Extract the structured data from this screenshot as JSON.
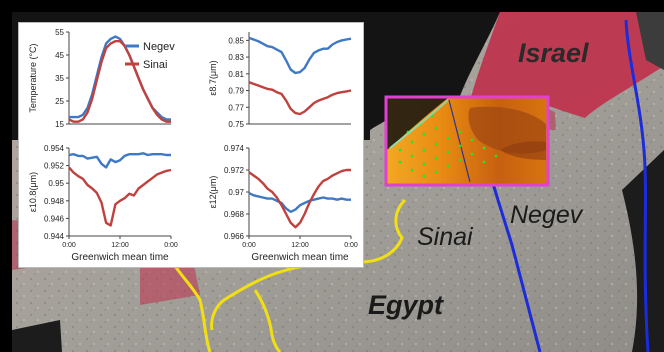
{
  "map": {
    "labels": {
      "israel": "Israel",
      "negev": "Negev",
      "sinai": "Sinai",
      "egypt": "Egypt"
    },
    "colors": {
      "border_blue": "#1c2bdc",
      "border_yellow": "#f2df12",
      "inset_frame": "#e23fd3",
      "vegetation_red": "#c0304a",
      "sea": "#141414"
    }
  },
  "chart_data": [
    {
      "type": "line",
      "ylabel": "Temperature (°C)",
      "xlabel": "",
      "x_ticks": [],
      "y_ticks": [
        "55",
        "45",
        "35",
        "25",
        "15"
      ],
      "ylim": [
        15,
        55
      ],
      "legend": {
        "position": "top-right",
        "entries": [
          "Negev",
          "Sinai"
        ]
      },
      "series": [
        {
          "name": "Negev",
          "color": "#3f78c4",
          "values": [
            18,
            18,
            18,
            19,
            22,
            28,
            36,
            44,
            50,
            52,
            53,
            52,
            49,
            45,
            40,
            35,
            30,
            26,
            22,
            20,
            18,
            17,
            17
          ]
        },
        {
          "name": "Sinai",
          "color": "#c0413d",
          "values": [
            17,
            16,
            16,
            17,
            20,
            26,
            34,
            42,
            48,
            50,
            51,
            51,
            49,
            45,
            40,
            35,
            30,
            26,
            22,
            19,
            17,
            16,
            16
          ]
        }
      ]
    },
    {
      "type": "line",
      "ylabel": "ε8.7(μm)",
      "xlabel": "",
      "x_ticks": [],
      "y_ticks": [
        "0.85",
        "0.83",
        "0.81",
        "0.79",
        "0.77",
        "0.75"
      ],
      "ylim": [
        0.75,
        0.86
      ],
      "series": [
        {
          "name": "Negev",
          "color": "#3f78c4",
          "values": [
            0.853,
            0.851,
            0.849,
            0.846,
            0.843,
            0.842,
            0.839,
            0.836,
            0.826,
            0.815,
            0.811,
            0.812,
            0.817,
            0.827,
            0.835,
            0.838,
            0.84,
            0.84,
            0.845,
            0.848,
            0.85,
            0.851,
            0.852
          ]
        },
        {
          "name": "Sinai",
          "color": "#c0413d",
          "values": [
            0.8,
            0.798,
            0.796,
            0.794,
            0.792,
            0.791,
            0.788,
            0.786,
            0.778,
            0.768,
            0.763,
            0.762,
            0.765,
            0.77,
            0.775,
            0.778,
            0.78,
            0.782,
            0.785,
            0.787,
            0.788,
            0.789,
            0.79
          ]
        }
      ]
    },
    {
      "type": "line",
      "ylabel": "ε10.8(μm)",
      "xlabel": "Greenwich mean time",
      "x_ticks": [
        "0:00",
        "12:00",
        "0:00"
      ],
      "y_ticks": [
        "0.954",
        "0.952",
        "0.95",
        "0.948",
        "0.946",
        "0.944"
      ],
      "ylim": [
        0.944,
        0.954
      ],
      "series": [
        {
          "name": "Negev",
          "color": "#3f78c4",
          "values": [
            0.9532,
            0.9533,
            0.9531,
            0.9531,
            0.9528,
            0.9529,
            0.953,
            0.9522,
            0.9518,
            0.9527,
            0.9524,
            0.9526,
            0.9531,
            0.9533,
            0.9533,
            0.9533,
            0.9534,
            0.9532,
            0.9533,
            0.9533,
            0.9533,
            0.9532,
            0.9532
          ]
        },
        {
          "name": "Sinai",
          "color": "#c0413d",
          "values": [
            0.9518,
            0.9512,
            0.9508,
            0.9505,
            0.9498,
            0.9494,
            0.9489,
            0.9478,
            0.9455,
            0.9452,
            0.9476,
            0.948,
            0.9483,
            0.9488,
            0.9486,
            0.9494,
            0.9498,
            0.9502,
            0.9506,
            0.951,
            0.9512,
            0.9514,
            0.9515
          ]
        }
      ]
    },
    {
      "type": "line",
      "ylabel": "ε12(μm)",
      "xlabel": "Greenwich mean time",
      "x_ticks": [
        "0:00",
        "12:00",
        "0:00"
      ],
      "y_ticks": [
        "0.974",
        "0.972",
        "0.97",
        "0.968",
        "0.966"
      ],
      "ylim": [
        0.966,
        0.974
      ],
      "series": [
        {
          "name": "Negev",
          "color": "#3f78c4",
          "values": [
            0.9699,
            0.9697,
            0.9696,
            0.9695,
            0.9694,
            0.9694,
            0.9692,
            0.969,
            0.9685,
            0.9682,
            0.9684,
            0.9688,
            0.969,
            0.9692,
            0.9693,
            0.9694,
            0.9695,
            0.9694,
            0.9694,
            0.9693,
            0.9694,
            0.9693,
            0.9693
          ]
        },
        {
          "name": "Sinai",
          "color": "#c0413d",
          "values": [
            0.9718,
            0.9715,
            0.9712,
            0.9708,
            0.9703,
            0.97,
            0.9695,
            0.9688,
            0.968,
            0.9672,
            0.9668,
            0.9672,
            0.968,
            0.969,
            0.9698,
            0.9705,
            0.971,
            0.9712,
            0.9715,
            0.9717,
            0.9719,
            0.972,
            0.972
          ]
        }
      ]
    }
  ]
}
